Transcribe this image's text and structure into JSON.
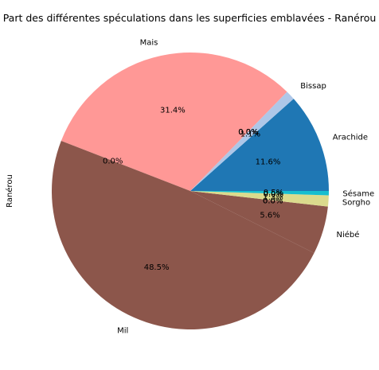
{
  "chart_data": {
    "type": "pie",
    "title": "Part des différentes spéculations dans les superficies emblavées - Ranérou",
    "ylabel": "Ranérou",
    "slices": [
      {
        "label": "Arachide",
        "value": 11.6,
        "color": "#1f77b4"
      },
      {
        "label": "Bissap",
        "value": 1.1,
        "color": "#aec7e8"
      },
      {
        "label": "",
        "value": 0.0,
        "color": "#ff7f0e"
      },
      {
        "label": "",
        "value": 0.0,
        "color": "#ffbb78"
      },
      {
        "label": "",
        "value": 0.0,
        "color": "#2ca02c"
      },
      {
        "label": "Mais",
        "value": 31.4,
        "color": "#ff9896"
      },
      {
        "label": "",
        "value": 0.0,
        "color": "#9467bd"
      },
      {
        "label": "Mil",
        "value": 48.5,
        "color": "#8c564b"
      },
      {
        "label": "Niébé",
        "value": 5.6,
        "color": "#8c564b"
      },
      {
        "label": "",
        "value": 0.0,
        "color": "#e377c2"
      },
      {
        "label": "",
        "value": 0.0,
        "color": "#7f7f7f"
      },
      {
        "label": "Sorgho",
        "value": 1.3,
        "color": "#dbdb8d"
      },
      {
        "label": "",
        "value": 0.0,
        "color": "#c7c7c7"
      },
      {
        "label": "",
        "value": 0.0,
        "color": "#bcbd22"
      },
      {
        "label": "Sésame",
        "value": 0.5,
        "color": "#17becf"
      }
    ],
    "pct_format": "{v}%",
    "start_angle_deg": 0,
    "direction": "counterclockwise",
    "legend": "none"
  }
}
